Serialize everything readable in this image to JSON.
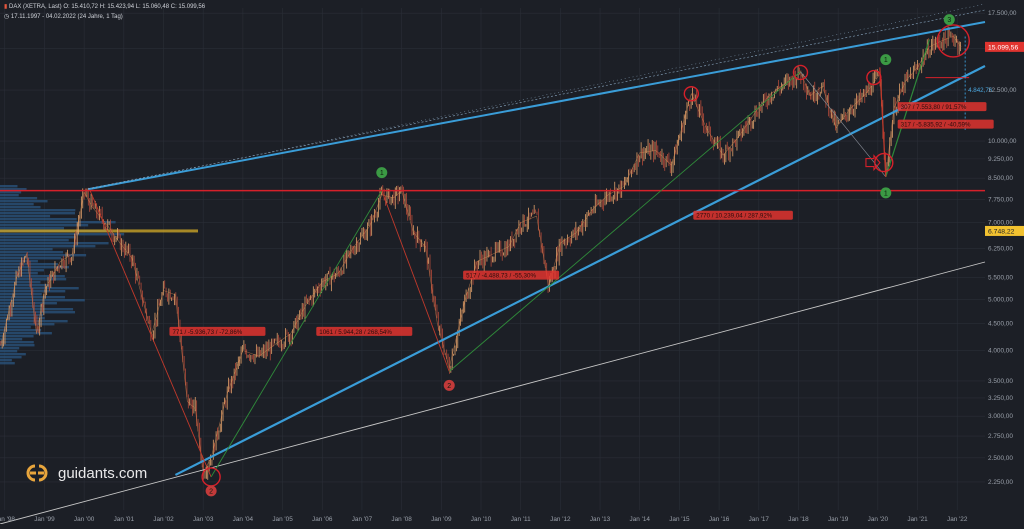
{
  "header": {
    "line1": "DAX (XETRA, Last)  O: 15.410,72  H: 15.423,94  L: 15.060,48  C: 15.099,56",
    "line2": "17.11.1997 - 04.02.2022    (24 Jahre, 1 Tag)"
  },
  "brand": {
    "logo_text": "guidants.com"
  },
  "colors": {
    "background": "#1c1f26",
    "channel": "#3a9dd8",
    "support": "#d6202a",
    "green_leg": "#2f8a3a",
    "red_leg": "#c0392b",
    "candle_up": "#e0a06a",
    "candle_down": "#b24a3a",
    "volume_profile": "#2a5680",
    "price_badge": "#e0342f",
    "level_badge": "#f2c230"
  },
  "chart_data": {
    "type": "candlestick",
    "title": "DAX (XETRA, Last)",
    "yscale": "log",
    "ylim": [
      1990,
      17900
    ],
    "xlim": [
      1997.88,
      2022.7
    ],
    "last_close": "15.099,56",
    "level_badge": "6.748,22",
    "y_ticks": [
      "17.500,00",
      "15.000,00",
      "12.500,00",
      "10.000,00",
      "9.250,00",
      "8.500,00",
      "7.750,00",
      "7.000,00",
      "6.250,00",
      "5.500,00",
      "5.000,00",
      "4.500,00",
      "4.000,00",
      "3.500,00",
      "3.250,00",
      "3.000,00",
      "2.750,00",
      "2.500,00",
      "2.250,00"
    ],
    "y_tick_values": [
      17500,
      15000,
      12500,
      10000,
      9250,
      8500,
      7750,
      7000,
      6250,
      5500,
      5000,
      4500,
      4000,
      3500,
      3250,
      3000,
      2750,
      2500,
      2250
    ],
    "x_ticks": [
      "Jan '98",
      "Jan '99",
      "Jan '00",
      "Jan '01",
      "Jan '02",
      "Jan '03",
      "Jan '04",
      "Jan '05",
      "Jan '06",
      "Jan '07",
      "Jan '08",
      "Jan '09",
      "Jan '10",
      "Jan '11",
      "Jan '12",
      "Jan '13",
      "Jan '14",
      "Jan '15",
      "Jan '16",
      "Jan '17",
      "Jan '18",
      "Jan '19",
      "Jan '20",
      "Jan '21",
      "Jan '22"
    ],
    "x_tick_values": [
      1998,
      1999,
      2000,
      2001,
      2002,
      2003,
      2004,
      2005,
      2006,
      2007,
      2008,
      2009,
      2010,
      2011,
      2012,
      2013,
      2014,
      2015,
      2016,
      2017,
      2018,
      2019,
      2020,
      2021,
      2022
    ],
    "series": [
      {
        "x": [
          1997.9,
          1998.3,
          1998.55,
          1998.8,
          1999.0,
          1999.4,
          1999.7,
          2000.0,
          2000.2,
          2000.6,
          2000.9,
          2001.2,
          2001.7,
          2002.0,
          2002.3,
          2002.6,
          2002.8,
          2003.0,
          2003.2,
          2003.6,
          2004.0,
          2004.4,
          2004.8,
          2005.2,
          2005.6,
          2006.0,
          2006.4,
          2006.8,
          2007.2,
          2007.5,
          2007.8,
          2008.0,
          2008.3,
          2008.6,
          2008.9,
          2009.2,
          2009.6,
          2009.9,
          2010.3,
          2010.7,
          2011.0,
          2011.4,
          2011.7,
          2012.0,
          2012.4,
          2012.8,
          2013.2,
          2013.6,
          2014.0,
          2014.4,
          2014.8,
          2015.3,
          2015.7,
          2016.1,
          2016.5,
          2016.9,
          2017.3,
          2017.7,
          2018.05,
          2018.3,
          2018.6,
          2018.95,
          2019.3,
          2019.7,
          2020.05,
          2020.2,
          2020.4,
          2020.7,
          2021.0,
          2021.3,
          2021.6,
          2021.9,
          2022.1
        ],
        "y": [
          4100,
          5500,
          6100,
          4300,
          5200,
          5900,
          6100,
          8000,
          7500,
          6900,
          6400,
          6000,
          4300,
          5200,
          5100,
          3200,
          3100,
          2350,
          2500,
          3300,
          4000,
          3900,
          4100,
          4300,
          4900,
          5400,
          5600,
          6300,
          6900,
          7900,
          7800,
          8050,
          6700,
          6300,
          4500,
          3700,
          5000,
          5900,
          6100,
          6300,
          7000,
          7200,
          5300,
          6400,
          6700,
          7400,
          7900,
          8200,
          9500,
          9600,
          9000,
          12300,
          10500,
          9400,
          10200,
          11300,
          12300,
          12900,
          13500,
          12200,
          12700,
          10600,
          11500,
          12300,
          13400,
          8550,
          11500,
          13000,
          13800,
          15100,
          15500,
          15800,
          15100
        ]
      }
    ],
    "annotations": [
      {
        "type": "label",
        "text": "771 / -5.936,73 / -72,86%"
      },
      {
        "type": "label",
        "text": "1061 / 5.944,28 / 268,54%"
      },
      {
        "type": "label",
        "text": "517 / -4.488,73 / -55,30%"
      },
      {
        "type": "label",
        "text": "2770 / 10.239,04 / 287,92%"
      },
      {
        "type": "label",
        "text": "307 / 7.553,80 / 91,57%"
      },
      {
        "type": "label",
        "text": "317 / -5.835,92 / -40,59%"
      },
      {
        "type": "label",
        "text": "4.842,76"
      }
    ]
  }
}
